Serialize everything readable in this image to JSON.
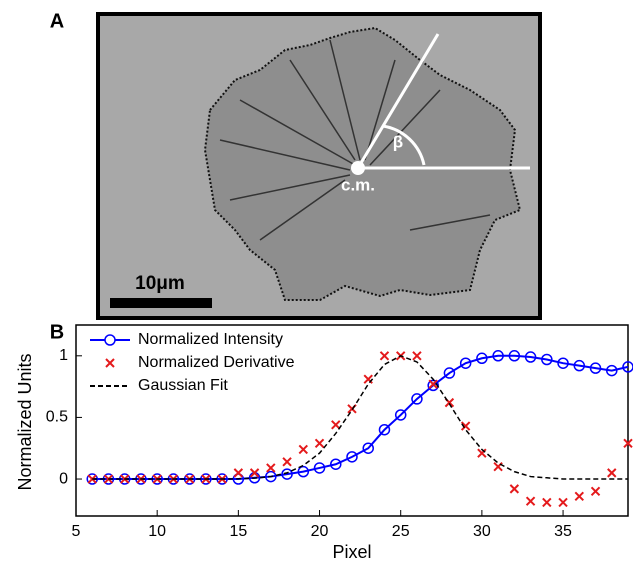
{
  "panel_a": {
    "label": "A",
    "scale_bar": "10μm",
    "cm_label": "c.m.",
    "angle_label": "β"
  },
  "chart_data": {
    "type": "line",
    "panel_label": "B",
    "x_label": "Pixel",
    "y_label": "Normalized Units",
    "x": [
      6,
      7,
      8,
      9,
      10,
      11,
      12,
      13,
      14,
      15,
      16,
      17,
      18,
      19,
      20,
      21,
      22,
      23,
      24,
      25,
      26,
      27,
      28,
      29,
      30,
      31,
      32,
      33,
      34,
      35,
      36,
      37,
      38,
      39
    ],
    "series": [
      {
        "name": "Normalized Intensity",
        "color": "#0000ff",
        "style": "line-circle",
        "values": [
          0,
          0,
          0,
          0,
          0,
          0,
          0,
          0,
          0,
          0,
          0.01,
          0.02,
          0.04,
          0.06,
          0.09,
          0.12,
          0.18,
          0.25,
          0.4,
          0.52,
          0.65,
          0.76,
          0.86,
          0.94,
          0.98,
          1.0,
          1.0,
          0.99,
          0.97,
          0.94,
          0.92,
          0.9,
          0.88,
          0.91
        ]
      },
      {
        "name": "Normalized Derivative",
        "color": "#e41a1c",
        "style": "cross",
        "values": [
          0,
          0,
          0,
          0,
          0,
          0,
          0,
          0,
          0,
          0.05,
          0.05,
          0.09,
          0.14,
          0.24,
          0.29,
          0.44,
          0.57,
          0.81,
          1.0,
          1.0,
          1.0,
          0.77,
          0.62,
          0.43,
          0.21,
          0.1,
          -0.08,
          -0.18,
          -0.19,
          -0.19,
          -0.14,
          -0.1,
          0.05,
          0.29
        ]
      },
      {
        "name": "Gaussian Fit",
        "color": "#000000",
        "style": "dashed",
        "values": [
          0,
          0,
          0,
          0,
          0,
          0,
          0,
          0,
          0,
          0.002,
          0.007,
          0.02,
          0.05,
          0.11,
          0.21,
          0.37,
          0.56,
          0.77,
          0.93,
          1.0,
          0.95,
          0.81,
          0.61,
          0.4,
          0.24,
          0.13,
          0.06,
          0.02,
          0.01,
          0,
          0,
          0,
          0,
          0
        ]
      }
    ],
    "xlim": [
      5,
      39
    ],
    "ylim": [
      -0.3,
      1.25
    ],
    "xticks": [
      5,
      10,
      15,
      20,
      25,
      30,
      35
    ],
    "yticks": [
      0,
      0.5,
      1
    ],
    "legend": "upper-left",
    "grid": false
  }
}
